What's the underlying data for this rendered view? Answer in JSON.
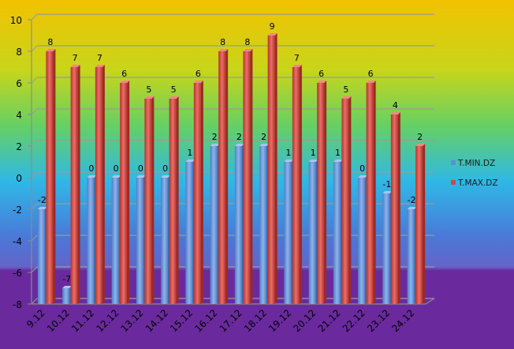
{
  "chart_data": {
    "type": "bar",
    "categories": [
      "9.12",
      "10.12",
      "11.12",
      "12.12",
      "13.12",
      "14.12",
      "15.12",
      "16.12",
      "17.12",
      "18.12",
      "19.12",
      "20.12",
      "21.12",
      "22.12",
      "23.12",
      "24.12"
    ],
    "series": [
      {
        "name": "T.MIN.DZ",
        "values": [
          -2,
          -7,
          0,
          0,
          0,
          0,
          1,
          2,
          2,
          2,
          1,
          1,
          1,
          0,
          -1,
          -2
        ],
        "color": "#5B8FD6"
      },
      {
        "name": "T.MAX.DZ",
        "values": [
          8,
          7,
          7,
          6,
          5,
          5,
          6,
          8,
          8,
          9,
          7,
          6,
          5,
          6,
          4,
          2
        ],
        "color": "#D9463F"
      }
    ],
    "yticks": [
      10,
      8,
      6,
      4,
      2,
      0,
      -2,
      -4,
      -6,
      -8
    ],
    "ylim": [
      -8,
      10
    ],
    "grid": true,
    "legend_position": "right",
    "colors": {
      "background_top": "#F2C200",
      "background_mid": "#2FB8E6",
      "background_bottom": "#6A2A9E"
    }
  }
}
